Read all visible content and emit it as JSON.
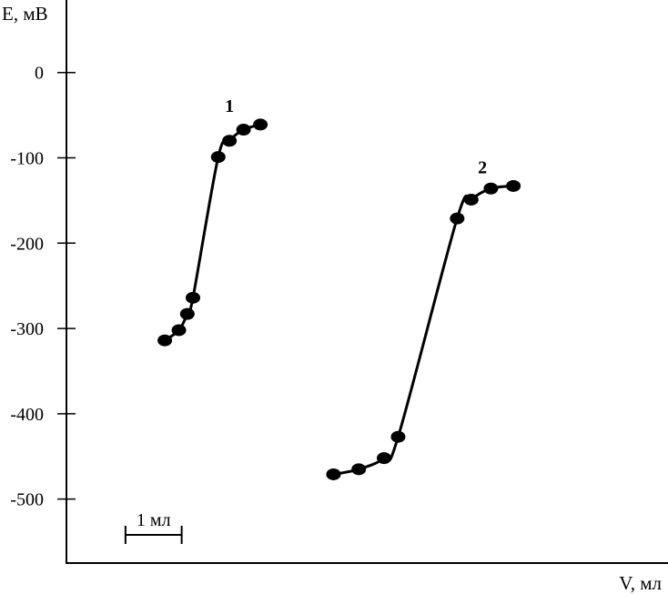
{
  "chart_data": {
    "type": "line",
    "title": "",
    "ylabel": "E, мВ",
    "xlabel": "V, мл",
    "y_ticks": [
      0,
      -100,
      -200,
      -300,
      -400,
      -500
    ],
    "y_tick_labels": [
      "0",
      "-100",
      "-200",
      "-300",
      "-400",
      "-500"
    ],
    "ylim": [
      -575,
      85
    ],
    "xlim": [
      -1.05,
      9.65
    ],
    "x_ticks_shown": false,
    "grid": false,
    "scale_bar": {
      "label": "1 мл",
      "length_ml": 1,
      "x_start": 0
    },
    "series": [
      {
        "label": "1",
        "x": [
          0.7,
          0.95,
          1.1,
          1.2,
          1.65,
          1.85,
          2.1,
          2.4
        ],
        "y": [
          -314,
          -302,
          -283,
          -264,
          -99,
          -80,
          -67,
          -61
        ]
      },
      {
        "label": "2",
        "x": [
          3.7,
          4.15,
          4.6,
          4.85,
          5.9,
          6.15,
          6.5,
          6.9
        ],
        "y": [
          -471,
          -465,
          -452,
          -427,
          -171,
          -149,
          -136,
          -133
        ]
      }
    ]
  }
}
